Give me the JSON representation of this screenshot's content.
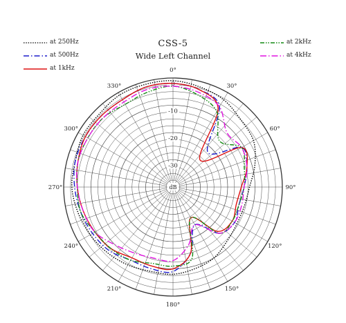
{
  "chart_data": {
    "type": "polar",
    "title": "CSS-5",
    "subtitle": "Wide Left Channel",
    "radial_unit": "dB",
    "radial_ticks": [
      "0",
      "-10",
      "-20",
      "-30"
    ],
    "radial_range": [
      -40,
      0
    ],
    "angle_labels": [
      "0°",
      "30°",
      "60°",
      "90°",
      "120°",
      "150°",
      "180°",
      "210°",
      "240°",
      "270°",
      "300°",
      "330°"
    ],
    "angles": [
      0,
      15,
      30,
      45,
      60,
      75,
      90,
      105,
      120,
      135,
      150,
      165,
      180,
      195,
      210,
      225,
      240,
      255,
      270,
      285,
      300,
      315,
      330,
      345
    ],
    "series": [
      {
        "name": "at 250Hz",
        "color": "#000000",
        "dash": "1.5,1.8",
        "values": [
          -1,
          -2,
          -3,
          -5,
          -6,
          -9,
          -12,
          -13,
          -13,
          -12,
          -10,
          -9,
          -8,
          -8,
          -7,
          -6,
          -5,
          -4,
          -3,
          -3,
          -2,
          -2,
          -1,
          -1
        ]
      },
      {
        "name": "at 500Hz",
        "color": "#1a1acc",
        "dash": "8,3,1.5,3",
        "values": [
          -2,
          -3,
          -6,
          -22,
          -11,
          -12,
          -14,
          -15,
          -14,
          -16,
          -24,
          -15,
          -9,
          -9,
          -9,
          -7,
          -6,
          -5,
          -4,
          -3,
          -3,
          -3,
          -3,
          -2
        ]
      },
      {
        "name": "at 1kHz",
        "color": "#dd1111",
        "dash": "",
        "values": [
          -2,
          -3,
          -7,
          -26,
          -11,
          -12,
          -15,
          -16,
          -15,
          -17,
          -27,
          -15,
          -10,
          -10,
          -10,
          -8,
          -7,
          -6,
          -5,
          -4,
          -3,
          -3,
          -3,
          -2
        ]
      },
      {
        "name": "at 2kHz",
        "color": "#118811",
        "dash": "6,2,1.5,2,1.5,2",
        "values": [
          -3,
          -5,
          -8,
          -16,
          -11,
          -13,
          -14,
          -15,
          -15,
          -16,
          -27,
          -13,
          -11,
          -11,
          -9,
          -8,
          -7,
          -5,
          -5,
          -4,
          -4,
          -4,
          -5,
          -4
        ]
      },
      {
        "name": "at 4kHz",
        "color": "#e011e0",
        "dash": "9,3,1.5,3",
        "values": [
          -3,
          -4,
          -6,
          -12,
          -11,
          -12,
          -14,
          -14,
          -14,
          -16,
          -24,
          -18,
          -13,
          -13,
          -12,
          -10,
          -7,
          -6,
          -5,
          -4,
          -4,
          -4,
          -4,
          -3
        ]
      }
    ]
  },
  "legend": {
    "left": [
      "at 250Hz",
      "at 500Hz",
      "at 1kHz"
    ],
    "right": [
      "at 2kHz",
      "at 4kHz"
    ]
  }
}
